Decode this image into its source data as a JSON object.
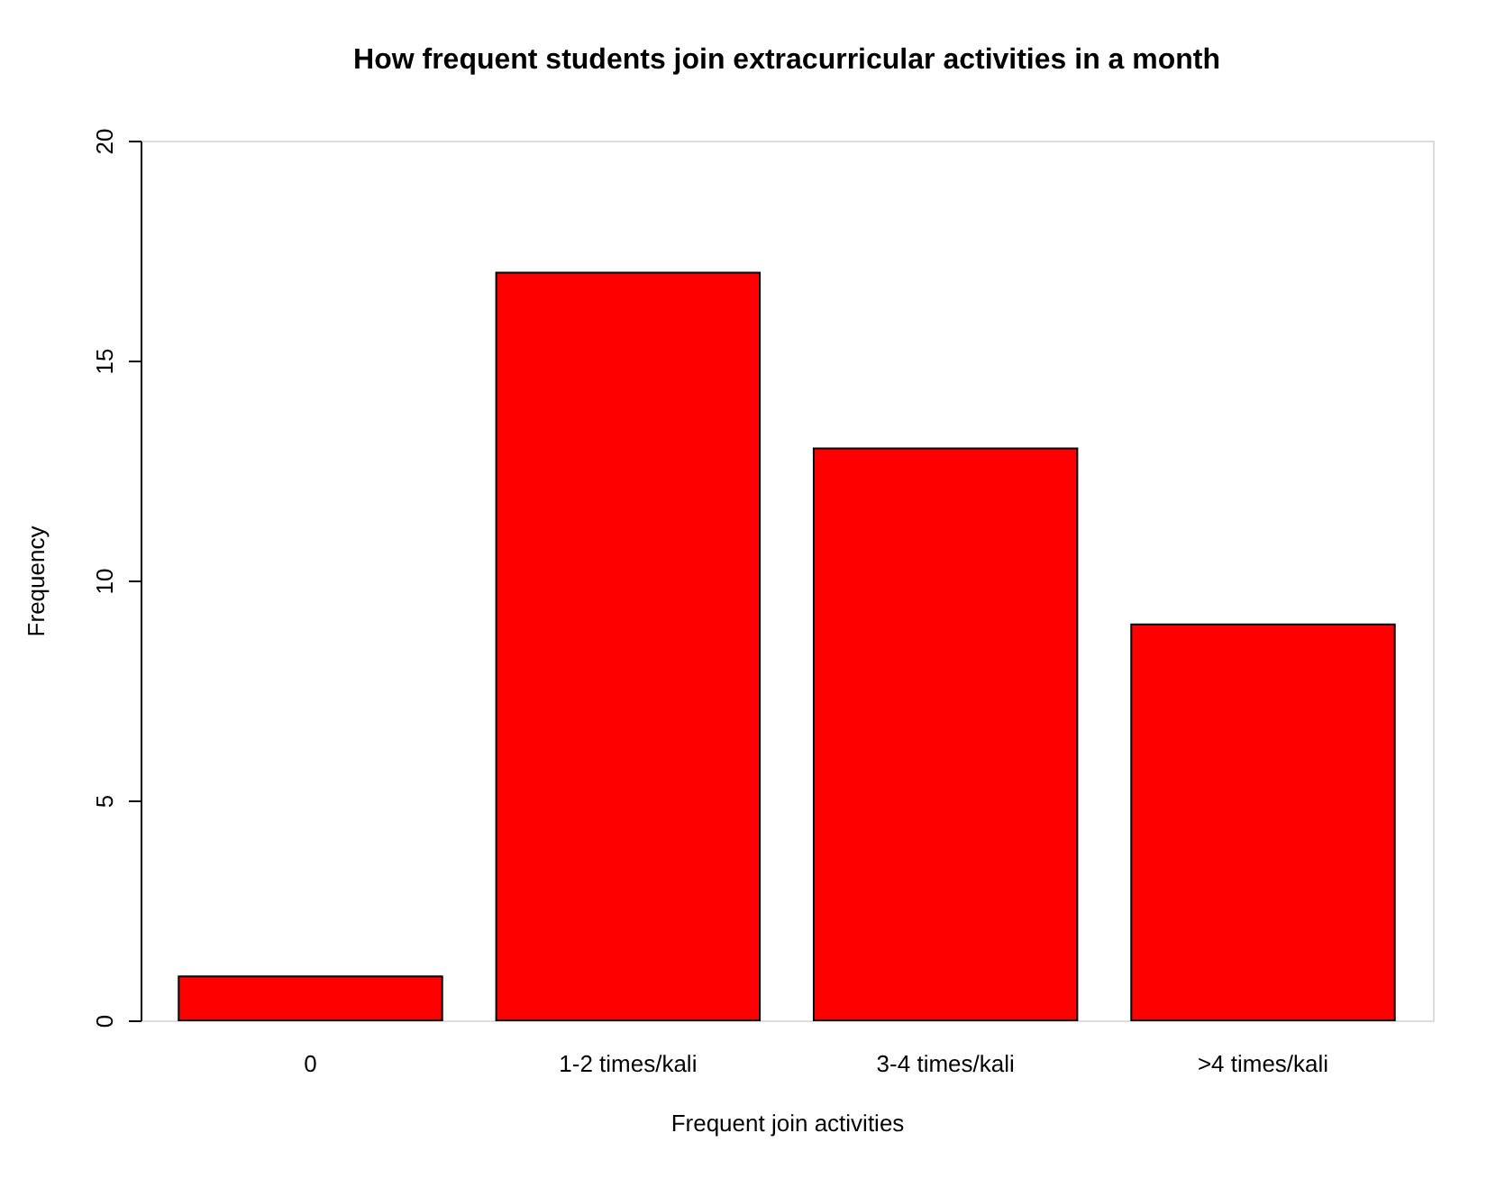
{
  "chart_data": {
    "type": "bar",
    "title": "How frequent students join extracurricular activities in a month",
    "xlabel": "Frequent join activities",
    "ylabel": "Frequency",
    "categories": [
      "0",
      "1-2 times/kali",
      "3-4 times/kali",
      ">4 times/kali"
    ],
    "values": [
      1,
      17,
      13,
      9
    ],
    "color": "#ff0000",
    "ylim": [
      0,
      20
    ],
    "yticks": [
      0,
      5,
      10,
      15,
      20
    ],
    "grid": false
  }
}
